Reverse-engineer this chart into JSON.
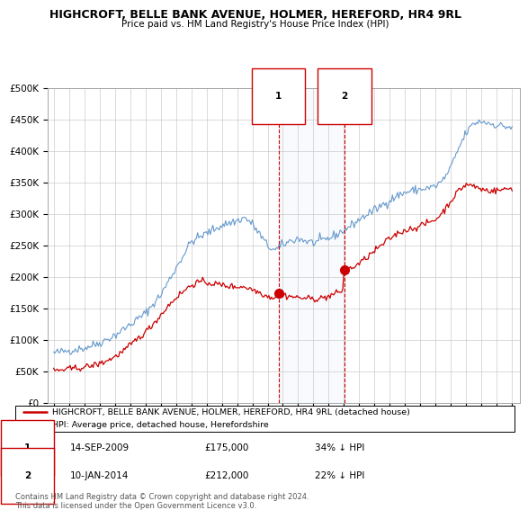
{
  "title": "HIGHCROFT, BELLE BANK AVENUE, HOLMER, HEREFORD, HR4 9RL",
  "subtitle": "Price paid vs. HM Land Registry's House Price Index (HPI)",
  "legend_line1": "HIGHCROFT, BELLE BANK AVENUE, HOLMER, HEREFORD, HR4 9RL (detached house)",
  "legend_line2": "HPI: Average price, detached house, Herefordshire",
  "annotation1_date": "14-SEP-2009",
  "annotation1_price": "£175,000",
  "annotation1_hpi": "34% ↓ HPI",
  "annotation1_year": 2009.71,
  "annotation1_value": 175000,
  "annotation2_date": "10-JAN-2014",
  "annotation2_price": "£212,000",
  "annotation2_hpi": "22% ↓ HPI",
  "annotation2_year": 2014.03,
  "annotation2_value": 212000,
  "footer": "Contains HM Land Registry data © Crown copyright and database right 2024.\nThis data is licensed under the Open Government Licence v3.0.",
  "red_color": "#cc0000",
  "blue_color": "#6699cc",
  "vline_color": "#cc0000",
  "background_color": "#ffffff",
  "grid_color": "#cccccc",
  "ylim": [
    0,
    500000
  ],
  "yticks": [
    0,
    50000,
    100000,
    150000,
    200000,
    250000,
    300000,
    350000,
    400000,
    450000,
    500000
  ],
  "xlim_min": 1994.6,
  "xlim_max": 2025.5
}
